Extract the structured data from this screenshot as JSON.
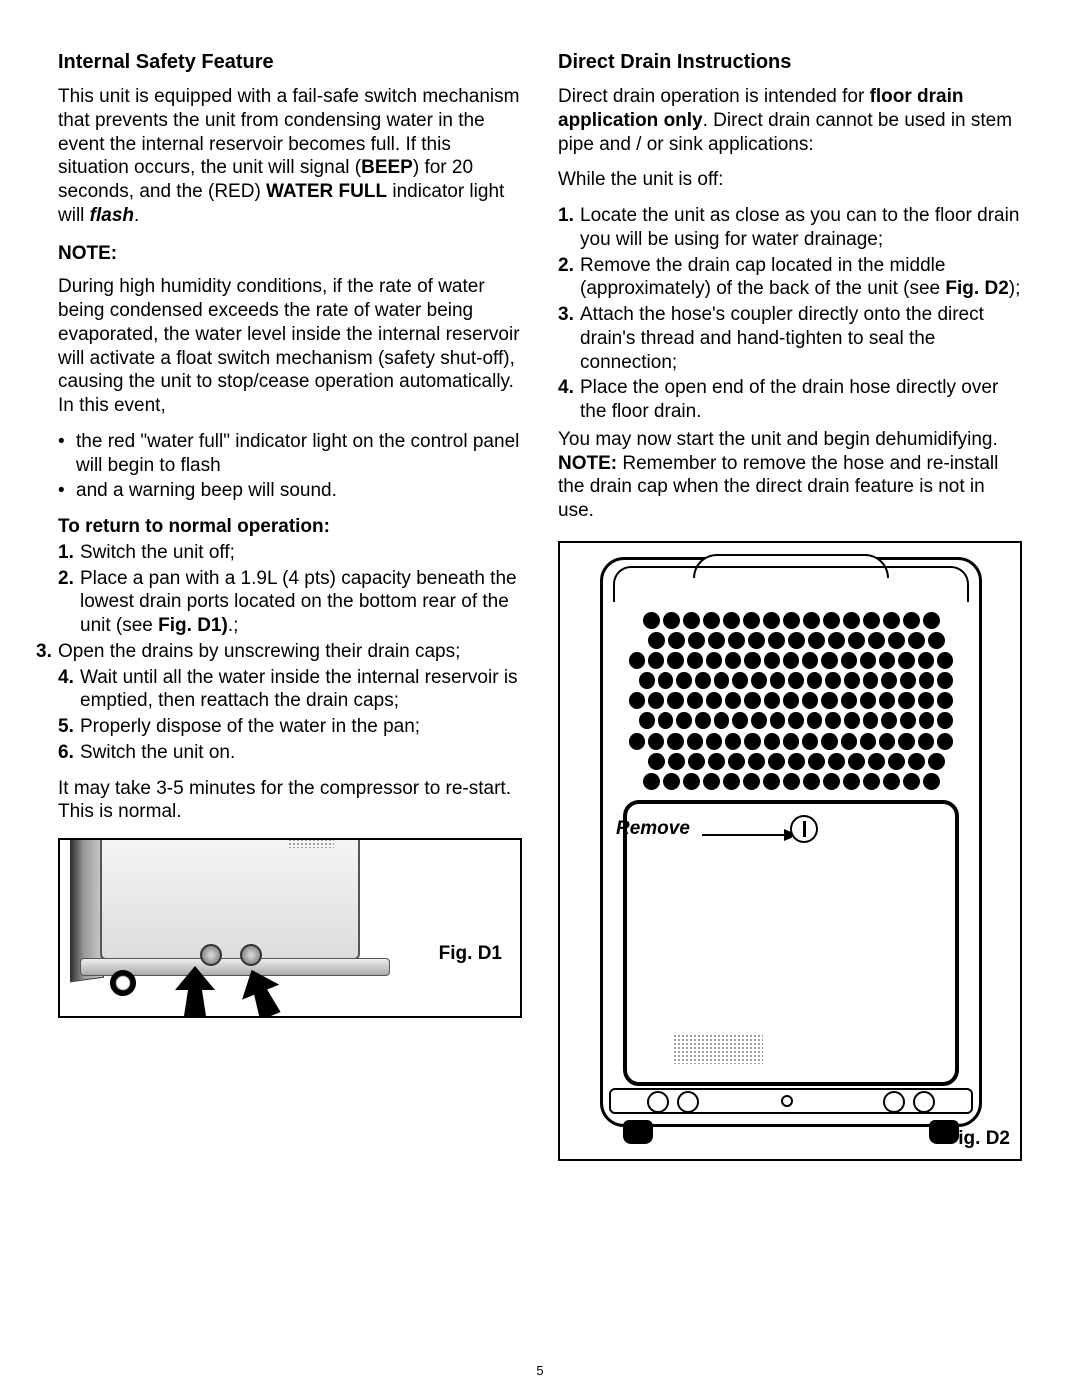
{
  "page_number": "5",
  "left": {
    "heading": "Internal Safety Feature",
    "intro_pre": "This unit is equipped with a fail-safe switch mechanism that prevents the unit from condensing water in the event the internal reservoir becomes full. If this situation occurs, the unit will signal (",
    "intro_beep": "BEEP",
    "intro_mid": ") for 20 seconds,  and the (RED) ",
    "intro_waterfull": "WATER FULL",
    "intro_post1": " indicator light will ",
    "intro_flash": "flash",
    "intro_end": ".",
    "note_heading": "NOTE:",
    "note_para": "During high humidity conditions, if the rate of water being condensed exceeds the rate of water being evaporated, the water level inside the internal reservoir will activate a float switch mechanism (safety shut-off), causing the unit to stop/cease operation automatically.  In this event,",
    "bullets": [
      "the red \"water full\" indicator light on the control panel will begin to flash",
      "and a warning beep will sound."
    ],
    "return_heading": "To return to normal operation:",
    "steps": [
      "Switch the unit off;",
      "Place a pan with a 1.9L (4 pts) capacity beneath the lowest drain ports located on the bottom rear of the unit (see ",
      "Open the drains by unscrewing their drain caps;",
      "Wait until all the water inside the internal reservoir is emptied, then reattach the drain caps;",
      "Properly dispose of the water in the pan;",
      "Switch the unit on."
    ],
    "step2_figref": "Fig. D1)",
    "step2_tail": ".;",
    "outro": "It may take 3-5 minutes for the compressor to re-start. This is normal.",
    "fig1_label": "Fig. D1"
  },
  "right": {
    "heading": "Direct Drain Instructions",
    "intro_pre": "Direct drain operation is intended for ",
    "intro_bold": "floor drain application only",
    "intro_post": ". Direct drain cannot be used in stem pipe and / or sink applications:",
    "while_off": "While the unit is off:",
    "steps": [
      "Locate the unit as close as you can to the floor drain you will be using for water drainage;",
      "Remove the drain cap located in the middle (approximately) of the back of the unit (see ",
      "Attach the hose's coupler directly onto the direct drain's thread and hand-tighten to seal the connection;",
      "Place the open end of the drain hose directly over the floor drain."
    ],
    "step2_figref": "Fig. D2",
    "step2_tail": ");",
    "outro_pre": "You may now start the unit and begin dehumidifying. ",
    "outro_note": "NOTE:",
    "outro_post": " Remember to remove the hose and re-install the drain cap when the direct drain feature is not in use.",
    "fig2_label": "Fig. D2",
    "remove_label": "Remove"
  },
  "colors": {
    "text": "#000000",
    "bg": "#ffffff",
    "border": "#000000"
  },
  "fig_d2": {
    "grille_rows": 9,
    "grille_dots_per_row": 17
  }
}
